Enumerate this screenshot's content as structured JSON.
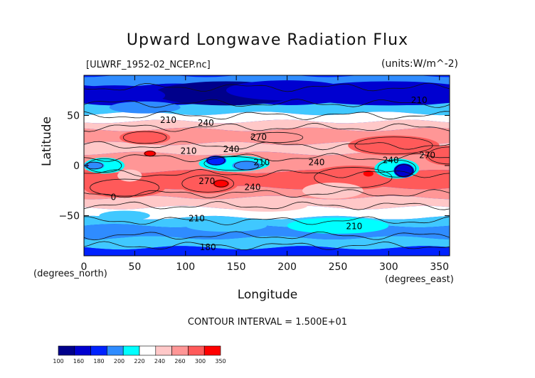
{
  "figure": {
    "title": "Upward Longwave Radiation Flux",
    "subtitle": "[ULWRF_1952-02_NCEP.nc]",
    "units": "(units:W/m^-2)",
    "x_axis_label": "Longitude",
    "x_unit_label": "(degrees_north)",
    "x_unit_label_2": "(degrees_east)",
    "y_axis_label": "Latitude",
    "contour_interval": "CONTOUR INTERVAL = 1.500E+01"
  },
  "colors": {
    "band_colors": [
      "#00008b",
      "#0000d0",
      "#0022ff",
      "#2f8cff",
      "#40c8ff",
      "#00ffff",
      "#ffffff",
      "#ffc8c8",
      "#ff9696",
      "#ff5a5a",
      "#ff0000"
    ],
    "contour_line": "#111111"
  },
  "chart_data": {
    "type": "heatmap",
    "title": "Upward Longwave Radiation Flux",
    "subtitle": "[ULWRF_1952-02_NCEP.nc]",
    "units": "(units:W/m^-2)",
    "xlabel": "Longitude",
    "ylabel": "Latitude",
    "xlim": [
      0,
      360
    ],
    "ylim": [
      -90,
      90
    ],
    "x_ticks": [
      0,
      50,
      100,
      150,
      200,
      250,
      300,
      350
    ],
    "y_ticks": [
      50,
      0,
      -50
    ],
    "x_tick_labels": [
      "0",
      "50",
      "100",
      "150",
      "200",
      "250",
      "300",
      "350"
    ],
    "y_tick_labels": [
      "50",
      "0",
      "−50"
    ],
    "colorbar": {
      "levels": [
        100,
        160,
        180,
        200,
        220,
        240,
        260,
        300,
        350
      ],
      "labels": [
        "100",
        "160",
        "180",
        "200",
        "220",
        "240",
        "260",
        "300",
        "350"
      ]
    },
    "contour_labels": [
      {
        "text": "210",
        "lon": 330,
        "lat": 65
      },
      {
        "text": "210",
        "lon": 83,
        "lat": 45
      },
      {
        "text": "240",
        "lon": 120,
        "lat": 42
      },
      {
        "text": "270",
        "lon": 172,
        "lat": 28
      },
      {
        "text": "270",
        "lon": 338,
        "lat": 10
      },
      {
        "text": "240",
        "lon": 145,
        "lat": 16
      },
      {
        "text": "210",
        "lon": 103,
        "lat": 14
      },
      {
        "text": "240",
        "lon": 229,
        "lat": 3
      },
      {
        "text": "240",
        "lon": 302,
        "lat": 5
      },
      {
        "text": "210",
        "lon": 175,
        "lat": 3
      },
      {
        "text": "270",
        "lon": 121,
        "lat": -16
      },
      {
        "text": "240",
        "lon": 166,
        "lat": -22
      },
      {
        "text": "0",
        "lon": 29,
        "lat": -32
      },
      {
        "text": "210",
        "lon": 111,
        "lat": -53
      },
      {
        "text": "210",
        "lon": 266,
        "lat": -61
      },
      {
        "text": "180",
        "lon": 122,
        "lat": -82
      }
    ],
    "contour_interval": 15
  }
}
